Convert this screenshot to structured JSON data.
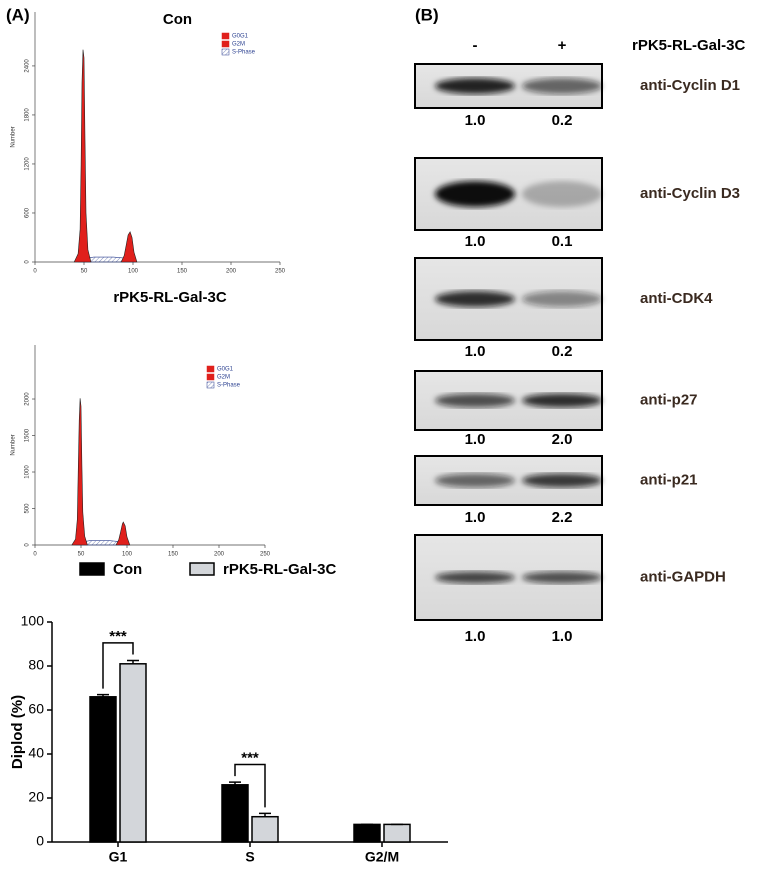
{
  "panel_a_label": "(A)",
  "chart_data": [
    {
      "type": "area",
      "title": "Con",
      "ylabel": "Number",
      "xlim": [
        0,
        250
      ],
      "ylim": [
        0,
        3060
      ],
      "xticks": [
        0,
        50,
        100,
        150,
        200,
        250
      ],
      "yticks": [
        0,
        600,
        1200,
        1800,
        2400
      ],
      "series": [
        {
          "name": "G0G1",
          "color": "#e0201c",
          "x": [
            40,
            44,
            46,
            47,
            48,
            49,
            50,
            51,
            52,
            54,
            57
          ],
          "values": [
            0,
            100,
            400,
            1200,
            2200,
            2600,
            2500,
            1500,
            600,
            150,
            0
          ]
        },
        {
          "name": "G2M",
          "color": "#e0201c",
          "x": [
            88,
            91,
            93,
            95,
            97,
            99,
            101,
            104
          ],
          "values": [
            0,
            80,
            200,
            330,
            370,
            300,
            120,
            0
          ]
        },
        {
          "name": "S-Phase",
          "color": "#2a3f8f",
          "fill": "hatch",
          "x": [
            45,
            50,
            60,
            70,
            80,
            90,
            100,
            102
          ],
          "values": [
            0,
            40,
            60,
            60,
            60,
            50,
            20,
            0
          ]
        }
      ]
    },
    {
      "type": "area",
      "title": "rPK5-RL-Gal-3C",
      "ylabel": "Number",
      "xlim": [
        0,
        250
      ],
      "ylim": [
        0,
        2740
      ],
      "xticks": [
        0,
        50,
        100,
        150,
        200,
        250
      ],
      "yticks": [
        0,
        500,
        1000,
        1500,
        2000
      ],
      "series": [
        {
          "name": "G0G1",
          "color": "#e0201c",
          "x": [
            40,
            44,
            46,
            47,
            48,
            49,
            50,
            51,
            52,
            54,
            57
          ],
          "values": [
            0,
            80,
            350,
            1000,
            1700,
            2010,
            1900,
            1100,
            450,
            120,
            0
          ]
        },
        {
          "name": "G2M",
          "color": "#e0201c",
          "x": [
            88,
            91,
            93,
            95,
            96,
            98,
            100,
            103
          ],
          "values": [
            0,
            70,
            180,
            290,
            315,
            260,
            110,
            0
          ]
        },
        {
          "name": "S-Phase",
          "color": "#2a3f8f",
          "fill": "hatch",
          "x": [
            45,
            50,
            60,
            70,
            80,
            90,
            100,
            102
          ],
          "values": [
            0,
            40,
            60,
            60,
            60,
            50,
            20,
            0
          ]
        }
      ]
    },
    {
      "type": "bar",
      "ylabel": "Diplod (%)",
      "categories": [
        "G1",
        "S",
        "G2/M"
      ],
      "ylim": [
        0,
        100
      ],
      "yticks": [
        0,
        20,
        40,
        60,
        80,
        100
      ],
      "series": [
        {
          "name": "Con",
          "color": "#000000",
          "values": [
            66,
            26,
            8
          ],
          "errors": [
            1,
            1.2,
            0
          ]
        },
        {
          "name": "rPK5-RL-Gal-3C",
          "color": "#d3d6da",
          "values": [
            81,
            11.5,
            8
          ],
          "errors": [
            1.5,
            1.5,
            0
          ]
        }
      ],
      "significance": [
        {
          "category": 0,
          "label": "***"
        },
        {
          "category": 1,
          "label": "***"
        }
      ]
    }
  ],
  "blot": {
    "label": "(B)",
    "lanes": [
      "-",
      "+"
    ],
    "treatment": "rPK5-RL-Gal-3C",
    "rows": [
      {
        "antibody": "anti-Cyclin D1",
        "quant": [
          "1.0",
          "0.2"
        ]
      },
      {
        "antibody": "anti-Cyclin D3",
        "quant": [
          "1.0",
          "0.1"
        ]
      },
      {
        "antibody": "anti-CDK4",
        "quant": [
          "1.0",
          "0.2"
        ]
      },
      {
        "antibody": "anti-p27",
        "quant": [
          "1.0",
          "2.0"
        ]
      },
      {
        "antibody": "anti-p21",
        "quant": [
          "1.0",
          "2.2"
        ]
      },
      {
        "antibody": "anti-GAPDH",
        "quant": [
          "1.0",
          "1.0"
        ]
      }
    ]
  }
}
